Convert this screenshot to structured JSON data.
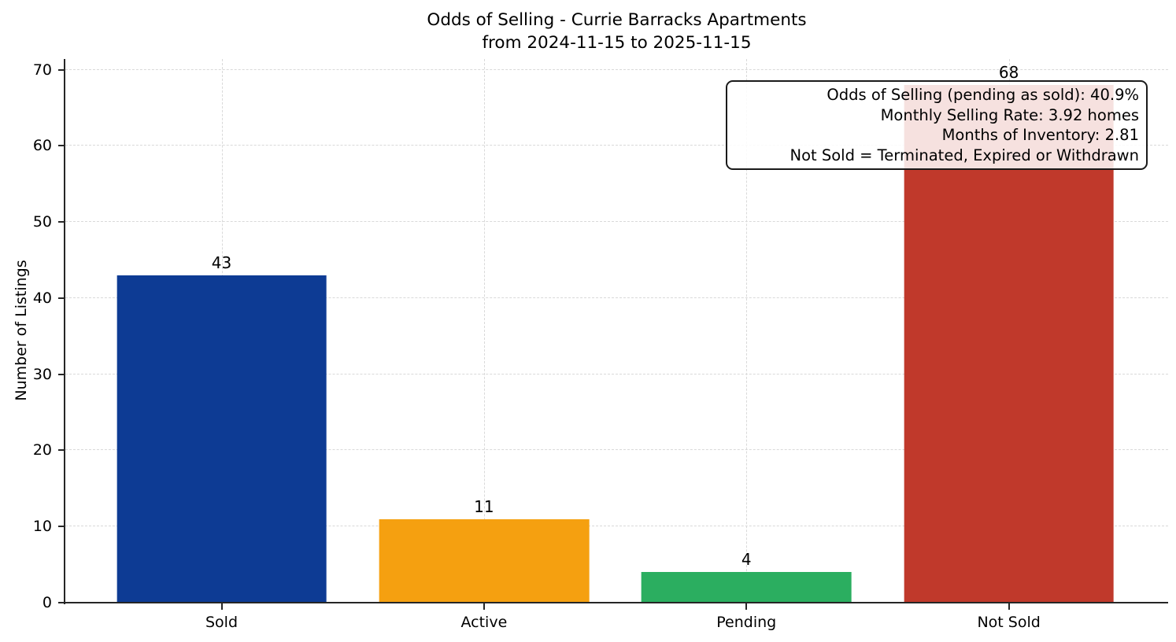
{
  "chart_data": {
    "type": "bar",
    "title": "Odds of Selling - Currie Barracks Apartments",
    "subtitle": "from 2024-11-15 to 2025-11-15",
    "categories": [
      "Sold",
      "Active",
      "Pending",
      "Not Sold"
    ],
    "values": [
      43,
      11,
      4,
      68
    ],
    "bar_colors": [
      "#0d3b94",
      "#f5a010",
      "#2bae60",
      "#c0392b"
    ],
    "xlabel": "",
    "ylabel": "Number of Listings",
    "yticks": [
      0,
      10,
      20,
      30,
      40,
      50,
      60,
      70
    ],
    "ylim": [
      0,
      71.4
    ],
    "grid": "dashed light-gray horizontal and vertical gridlines",
    "legend_position": "none",
    "annotation": {
      "position": "top-right",
      "lines": [
        "Odds of Selling (pending as sold): 40.9%",
        "Monthly Selling Rate: 3.92 homes",
        "Months of Inventory: 2.81",
        "Not Sold = Terminated, Expired or Withdrawn"
      ]
    }
  },
  "colors": {
    "spine": "#262626",
    "grid": "#d9d9d9",
    "text": "#000000",
    "background": "#ffffff",
    "annotation_border": "#1a1a1a"
  }
}
